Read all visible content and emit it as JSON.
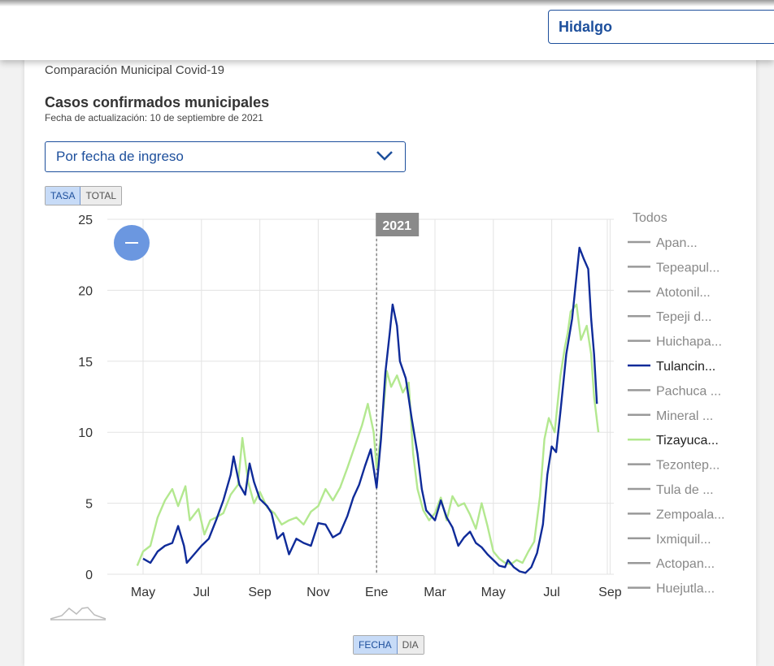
{
  "header": {
    "state_value": "Hidalgo"
  },
  "section_title": "Comparación Municipal Covid-19",
  "chart_title": "Casos confirmados municipales",
  "update_date": "Fecha de actualización: 10 de septiembre de 2021",
  "mode_select": {
    "value": "Por fecha de ingreso"
  },
  "units_toggle": {
    "rate": "TASA",
    "total": "TOTAL",
    "selected": "TASA"
  },
  "axis_toggle": {
    "date": "FECHA",
    "day": "DIA",
    "selected": "FECHA"
  },
  "legend": {
    "all_label": "Todos",
    "items": [
      "Apan...",
      "Tepeapul...",
      "Atotonil...",
      "Tepeji d...",
      "Huichapa...",
      "Tulancin...",
      "Pachuca ...",
      "Mineral ...",
      "Tizayuca...",
      "Tezontep...",
      "Tula de ...",
      "Zempoala...",
      "Ixmiquil...",
      "Actopan...",
      "Huejutla..."
    ],
    "highlighted": [
      "Tulancin...",
      "Tizayuca..."
    ]
  },
  "zoom_button_label": "—",
  "colors": {
    "tulancingo": "#0f2b99",
    "tizayuca": "#b3e88f",
    "accent": "#1d4f9c",
    "zoom": "#6b97e0",
    "muted_series": "#999999"
  },
  "chart_data": {
    "type": "line",
    "ylim": [
      0,
      25
    ],
    "y_ticks": [
      0,
      5,
      10,
      15,
      20,
      25
    ],
    "x_ticks": [
      "May",
      "Jul",
      "Sep",
      "Nov",
      "Ene",
      "Mar",
      "May",
      "Jul",
      "Sep"
    ],
    "year_marker": {
      "label": "2021",
      "at": "Ene"
    },
    "series": [
      {
        "name": "Tulancin...",
        "color": "#0f2b99",
        "points": [
          [
            0.0,
            1.1
          ],
          [
            0.25,
            0.8
          ],
          [
            0.5,
            1.6
          ],
          [
            0.75,
            2.0
          ],
          [
            1.0,
            2.2
          ],
          [
            1.2,
            3.4
          ],
          [
            1.4,
            2.0
          ],
          [
            1.5,
            0.8
          ],
          [
            1.75,
            1.4
          ],
          [
            2.0,
            2.0
          ],
          [
            2.25,
            2.5
          ],
          [
            2.5,
            3.8
          ],
          [
            2.75,
            5.2
          ],
          [
            3.0,
            7.0
          ],
          [
            3.1,
            8.3
          ],
          [
            3.3,
            6.3
          ],
          [
            3.5,
            5.6
          ],
          [
            3.65,
            7.8
          ],
          [
            3.8,
            6.5
          ],
          [
            4.0,
            5.3
          ],
          [
            4.25,
            4.8
          ],
          [
            4.4,
            4.3
          ],
          [
            4.6,
            2.5
          ],
          [
            4.8,
            2.9
          ],
          [
            5.0,
            1.4
          ],
          [
            5.25,
            2.5
          ],
          [
            5.5,
            2.2
          ],
          [
            5.75,
            2.0
          ],
          [
            6.0,
            3.6
          ],
          [
            6.25,
            3.5
          ],
          [
            6.5,
            2.6
          ],
          [
            6.75,
            2.9
          ],
          [
            7.0,
            4.1
          ],
          [
            7.2,
            5.4
          ],
          [
            7.4,
            6.3
          ],
          [
            7.6,
            7.6
          ],
          [
            7.8,
            8.8
          ],
          [
            8.0,
            6.1
          ],
          [
            8.15,
            9.5
          ],
          [
            8.3,
            14.2
          ],
          [
            8.45,
            17.0
          ],
          [
            8.55,
            19.0
          ],
          [
            8.7,
            17.5
          ],
          [
            8.8,
            15.0
          ],
          [
            9.0,
            13.8
          ],
          [
            9.2,
            11.0
          ],
          [
            9.4,
            8.5
          ],
          [
            9.55,
            6.0
          ],
          [
            9.7,
            4.5
          ],
          [
            10.0,
            3.8
          ],
          [
            10.2,
            5.2
          ],
          [
            10.4,
            4.0
          ],
          [
            10.6,
            3.3
          ],
          [
            10.8,
            2.0
          ],
          [
            11.0,
            2.6
          ],
          [
            11.2,
            3.0
          ],
          [
            11.4,
            2.2
          ],
          [
            11.6,
            1.9
          ],
          [
            11.8,
            1.4
          ],
          [
            12.0,
            1.0
          ],
          [
            12.2,
            0.6
          ],
          [
            12.4,
            0.5
          ],
          [
            12.5,
            1.0
          ],
          [
            12.7,
            0.5
          ],
          [
            12.9,
            0.2
          ],
          [
            13.1,
            0.1
          ],
          [
            13.3,
            0.5
          ],
          [
            13.5,
            1.5
          ],
          [
            13.7,
            3.5
          ],
          [
            13.85,
            7.0
          ],
          [
            14.0,
            9.0
          ],
          [
            14.15,
            8.6
          ],
          [
            14.3,
            11.5
          ],
          [
            14.5,
            15.5
          ],
          [
            14.7,
            18.0
          ],
          [
            14.85,
            21.0
          ],
          [
            14.95,
            23.0
          ],
          [
            15.1,
            22.2
          ],
          [
            15.25,
            21.5
          ],
          [
            15.35,
            18.0
          ],
          [
            15.45,
            15.5
          ],
          [
            15.55,
            12.0
          ]
        ]
      },
      {
        "name": "Tizayuca...",
        "color": "#b3e88f",
        "points": [
          [
            -0.2,
            0.6
          ],
          [
            0.0,
            1.6
          ],
          [
            0.25,
            2.0
          ],
          [
            0.5,
            4.0
          ],
          [
            0.75,
            5.2
          ],
          [
            1.0,
            6.0
          ],
          [
            1.2,
            4.8
          ],
          [
            1.45,
            6.2
          ],
          [
            1.6,
            3.8
          ],
          [
            1.9,
            4.6
          ],
          [
            2.1,
            2.8
          ],
          [
            2.3,
            3.8
          ],
          [
            2.5,
            4.0
          ],
          [
            2.75,
            4.3
          ],
          [
            3.0,
            5.6
          ],
          [
            3.25,
            6.3
          ],
          [
            3.4,
            9.6
          ],
          [
            3.6,
            6.5
          ],
          [
            3.8,
            5.0
          ],
          [
            4.0,
            5.8
          ],
          [
            4.25,
            4.7
          ],
          [
            4.5,
            4.3
          ],
          [
            4.75,
            3.5
          ],
          [
            5.0,
            3.8
          ],
          [
            5.25,
            4.0
          ],
          [
            5.5,
            3.5
          ],
          [
            5.75,
            4.4
          ],
          [
            6.0,
            4.8
          ],
          [
            6.25,
            6.0
          ],
          [
            6.5,
            5.2
          ],
          [
            6.75,
            6.1
          ],
          [
            7.0,
            7.5
          ],
          [
            7.25,
            9.0
          ],
          [
            7.5,
            10.5
          ],
          [
            7.7,
            12.0
          ],
          [
            7.9,
            10.0
          ],
          [
            8.0,
            7.5
          ],
          [
            8.1,
            9.0
          ],
          [
            8.25,
            12.0
          ],
          [
            8.35,
            14.3
          ],
          [
            8.5,
            13.2
          ],
          [
            8.7,
            14.0
          ],
          [
            8.9,
            12.8
          ],
          [
            9.1,
            13.5
          ],
          [
            9.25,
            8.5
          ],
          [
            9.4,
            6.0
          ],
          [
            9.6,
            4.5
          ],
          [
            9.8,
            3.8
          ],
          [
            10.0,
            4.3
          ],
          [
            10.2,
            5.4
          ],
          [
            10.4,
            3.8
          ],
          [
            10.6,
            5.5
          ],
          [
            10.8,
            4.8
          ],
          [
            11.0,
            5.0
          ],
          [
            11.2,
            4.2
          ],
          [
            11.4,
            3.2
          ],
          [
            11.6,
            5.0
          ],
          [
            11.8,
            3.4
          ],
          [
            12.0,
            1.6
          ],
          [
            12.2,
            1.1
          ],
          [
            12.4,
            0.8
          ],
          [
            12.6,
            0.7
          ],
          [
            12.8,
            1.0
          ],
          [
            13.0,
            0.8
          ],
          [
            13.2,
            1.6
          ],
          [
            13.4,
            2.3
          ],
          [
            13.6,
            5.5
          ],
          [
            13.75,
            9.5
          ],
          [
            13.9,
            11.0
          ],
          [
            14.1,
            10.0
          ],
          [
            14.3,
            14.0
          ],
          [
            14.45,
            16.0
          ],
          [
            14.55,
            17.0
          ],
          [
            14.65,
            18.5
          ],
          [
            14.85,
            19.0
          ],
          [
            15.0,
            16.5
          ],
          [
            15.2,
            17.5
          ],
          [
            15.35,
            15.5
          ],
          [
            15.45,
            12.5
          ],
          [
            15.6,
            10.0
          ]
        ]
      }
    ]
  }
}
